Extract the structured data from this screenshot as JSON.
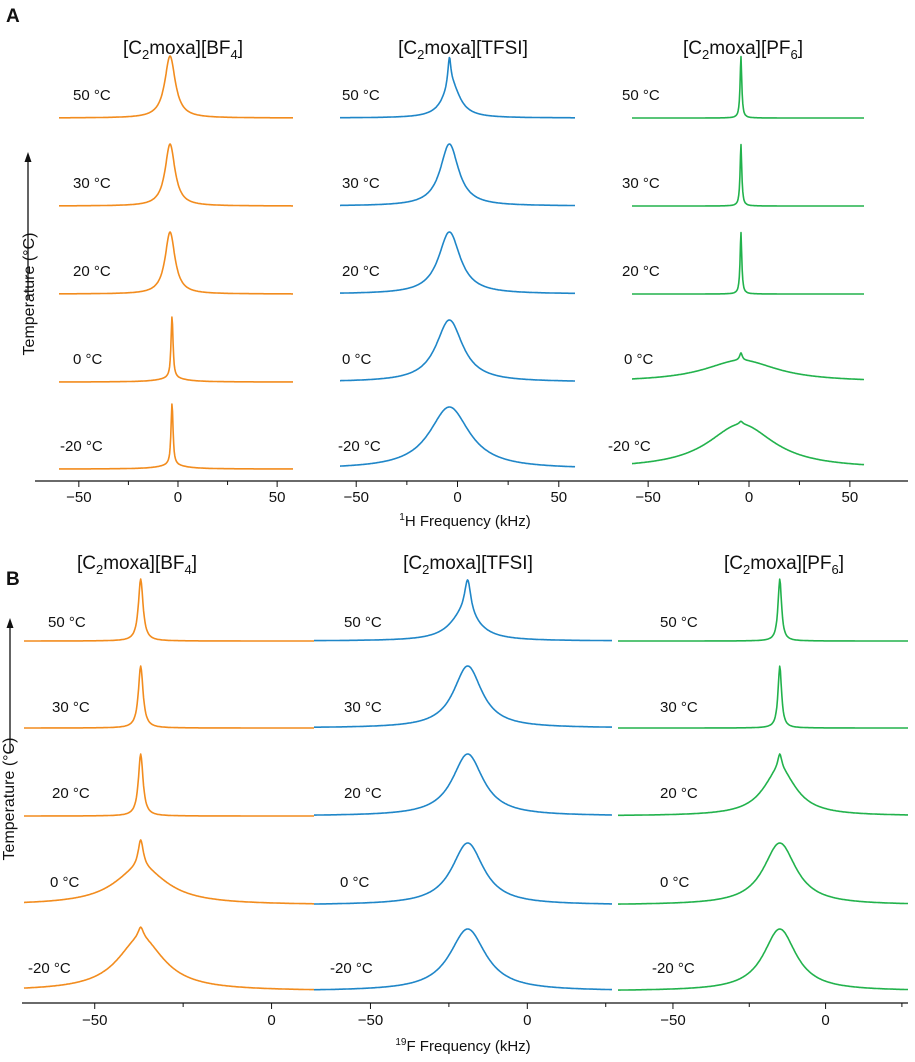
{
  "chart_data": [
    {
      "panel": "A",
      "type": "line",
      "xlabel_sup": "1",
      "xlabel_main": "H Frequency (kHz)",
      "ylabel": "Temperature (°C)",
      "x_ticks": [
        -50,
        0,
        50
      ],
      "subplots": [
        {
          "title": {
            "pre": "[C",
            "sub1": "2",
            "mid": "moxa][BF",
            "sub2": "4",
            "post": "]"
          },
          "color": "#f28c1e",
          "xlim": [
            -60,
            58
          ],
          "series": [
            {
              "label": "50 °C",
              "center": -4,
              "peaks": [
                {
                  "c": -4,
                  "w": 3.2,
                  "h": 1.0
                }
              ],
              "base_rise": 0
            },
            {
              "label": "30 °C",
              "center": -4,
              "peaks": [
                {
                  "c": -4,
                  "w": 3.0,
                  "h": 1.0
                }
              ],
              "base_rise": 0
            },
            {
              "label": "20 °C",
              "center": -4,
              "peaks": [
                {
                  "c": -4,
                  "w": 3.0,
                  "h": 1.0
                }
              ],
              "base_rise": 0
            },
            {
              "label": "0 °C",
              "center": -3,
              "peaks": [
                {
                  "c": -3,
                  "w": 0.6,
                  "h": 1.0
                },
                {
                  "c": -3,
                  "w": 8,
                  "h": 0.06
                }
              ],
              "base_rise": 0
            },
            {
              "label": "-20 °C",
              "center": -3,
              "peaks": [
                {
                  "c": -3,
                  "w": 0.6,
                  "h": 1.0
                },
                {
                  "c": -3,
                  "w": 8,
                  "h": 0.06
                }
              ],
              "base_rise": 0
            }
          ]
        },
        {
          "title": {
            "pre": "[C",
            "sub1": "2",
            "mid": "moxa][TFSI",
            "sub2": "",
            "post": "]"
          },
          "color": "#1f86c8",
          "xlim": [
            -58,
            58
          ],
          "series": [
            {
              "label": "50 °C",
              "center": -4,
              "peaks": [
                {
                  "c": -4,
                  "w": 0.9,
                  "h": 0.45
                },
                {
                  "c": -3,
                  "w": 5,
                  "h": 0.55
                }
              ],
              "base_rise": 0
            },
            {
              "label": "30 °C",
              "center": -4,
              "peaks": [
                {
                  "c": -4,
                  "w": 5.5,
                  "h": 1.0
                }
              ],
              "base_rise": 0
            },
            {
              "label": "20 °C",
              "center": -4,
              "peaks": [
                {
                  "c": -4,
                  "w": 6.5,
                  "h": 1.0
                }
              ],
              "base_rise": 0
            },
            {
              "label": "0 °C",
              "center": -4,
              "peaks": [
                {
                  "c": -4,
                  "w": 8,
                  "h": 1.0
                }
              ],
              "base_rise": 0
            },
            {
              "label": "-20 °C",
              "center": -4,
              "peaks": [
                {
                  "c": -4,
                  "w": 12,
                  "h": 1.0
                }
              ],
              "base_rise": 0
            }
          ]
        },
        {
          "title": {
            "pre": "[C",
            "sub1": "2",
            "mid": "moxa][PF",
            "sub2": "6",
            "post": "]"
          },
          "color": "#22b24c",
          "xlim": [
            -58,
            57
          ],
          "series": [
            {
              "label": "50 °C",
              "center": -4,
              "peaks": [
                {
                  "c": -4,
                  "w": 0.5,
                  "h": 1.0
                }
              ],
              "base_rise": 0
            },
            {
              "label": "30 °C",
              "center": -4,
              "peaks": [
                {
                  "c": -4,
                  "w": 0.5,
                  "h": 1.0
                }
              ],
              "base_rise": 0
            },
            {
              "label": "20 °C",
              "center": -4,
              "peaks": [
                {
                  "c": -4,
                  "w": 0.5,
                  "h": 1.0
                }
              ],
              "base_rise": 0
            },
            {
              "label": "0 °C",
              "center": -4,
              "peaks": [
                {
                  "c": -4,
                  "w": 0.8,
                  "h": 0.12
                },
                {
                  "c": -4,
                  "w": 22,
                  "h": 0.35
                }
              ],
              "base_rise": 0
            },
            {
              "label": "-20 °C",
              "center": -4,
              "peaks": [
                {
                  "c": -4,
                  "w": 1.0,
                  "h": 0.05
                },
                {
                  "c": -4,
                  "w": 20,
                  "h": 0.72
                }
              ],
              "base_rise": 0
            }
          ]
        }
      ]
    },
    {
      "panel": "B",
      "type": "line",
      "xlabel_sup": "19",
      "xlabel_main": "F Frequency (kHz)",
      "ylabel": "Temperature (°C)",
      "subplots": [
        {
          "title": {
            "pre": "[C",
            "sub1": "2",
            "mid": "moxa][BF",
            "sub2": "4",
            "post": "]"
          },
          "color": "#f28c1e",
          "xlim": [
            -70,
            12
          ],
          "x_ticks": [
            -50,
            0
          ],
          "series": [
            {
              "label": "50 °C",
              "center": -37,
              "peaks": [
                {
                  "c": -37,
                  "w": 0.8,
                  "h": 1.0
                }
              ],
              "base_rise": 0
            },
            {
              "label": "30 °C",
              "center": -37,
              "peaks": [
                {
                  "c": -37,
                  "w": 0.8,
                  "h": 1.0
                }
              ],
              "base_rise": 0
            },
            {
              "label": "20 °C",
              "center": -37,
              "peaks": [
                {
                  "c": -37,
                  "w": 0.8,
                  "h": 1.0
                }
              ],
              "base_rise": 0
            },
            {
              "label": "0 °C",
              "center": -37,
              "peaks": [
                {
                  "c": -37,
                  "w": 0.9,
                  "h": 0.45
                },
                {
                  "c": -37,
                  "w": 9,
                  "h": 0.6
                }
              ],
              "base_rise": 0
            },
            {
              "label": "-20 °C",
              "center": -37,
              "peaks": [
                {
                  "c": -37,
                  "w": 0.9,
                  "h": 0.18
                },
                {
                  "c": -37,
                  "w": 8,
                  "h": 0.85
                }
              ],
              "base_rise": 0
            }
          ]
        },
        {
          "title": {
            "pre": "[C",
            "sub1": "2",
            "mid": "moxa][TFSI",
            "sub2": "",
            "post": "]"
          },
          "color": "#1f86c8",
          "xlim": [
            -68,
            27
          ],
          "x_ticks": [
            -50,
            0
          ],
          "series": [
            {
              "label": "50 °C",
              "center": -19,
              "peaks": [
                {
                  "c": -19,
                  "w": 1.2,
                  "h": 0.55
                },
                {
                  "c": -20,
                  "w": 5.5,
                  "h": 0.45
                }
              ],
              "base_rise": 0
            },
            {
              "label": "30 °C",
              "center": -19,
              "peaks": [
                {
                  "c": -19,
                  "w": 5.5,
                  "h": 1.0
                }
              ],
              "base_rise": 0
            },
            {
              "label": "20 °C",
              "center": -19,
              "peaks": [
                {
                  "c": -19,
                  "w": 6.0,
                  "h": 1.0
                }
              ],
              "base_rise": 0
            },
            {
              "label": "0 °C",
              "center": -19,
              "peaks": [
                {
                  "c": -19,
                  "w": 6.2,
                  "h": 1.0
                }
              ],
              "base_rise": 0
            },
            {
              "label": "-20 °C",
              "center": -19,
              "peaks": [
                {
                  "c": -19,
                  "w": 7.0,
                  "h": 1.0
                }
              ],
              "base_rise": 0
            }
          ]
        },
        {
          "title": {
            "pre": "[C",
            "sub1": "2",
            "mid": "moxa][PF",
            "sub2": "6",
            "post": "]"
          },
          "color": "#22b24c",
          "xlim": [
            -68,
            27
          ],
          "x_ticks": [
            -50,
            0
          ],
          "series": [
            {
              "label": "50 °C",
              "center": -15,
              "peaks": [
                {
                  "c": -15,
                  "w": 0.7,
                  "h": 1.0
                }
              ],
              "base_rise": 0
            },
            {
              "label": "30 °C",
              "center": -15,
              "peaks": [
                {
                  "c": -15,
                  "w": 0.7,
                  "h": 1.0
                }
              ],
              "base_rise": 0
            },
            {
              "label": "20 °C",
              "center": -15,
              "peaks": [
                {
                  "c": -15,
                  "w": 0.8,
                  "h": 0.25
                },
                {
                  "c": -15,
                  "w": 6.5,
                  "h": 0.75
                }
              ],
              "base_rise": 0
            },
            {
              "label": "0 °C",
              "center": -15,
              "peaks": [
                {
                  "c": -15,
                  "w": 6.5,
                  "h": 1.0
                }
              ],
              "base_rise": 0
            },
            {
              "label": "-20 °C",
              "center": -15,
              "peaks": [
                {
                  "c": -15,
                  "w": 6.5,
                  "h": 1.0
                }
              ],
              "base_rise": 0
            }
          ]
        }
      ]
    }
  ]
}
